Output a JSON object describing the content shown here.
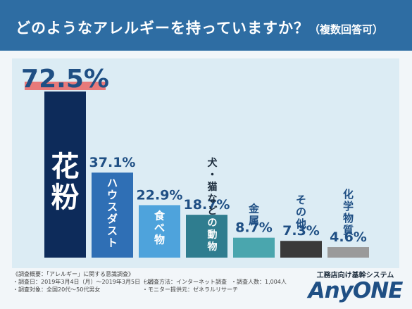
{
  "header": {
    "title": "どのようなアレルギーを持っていますか？",
    "subtitle": "（複数回答可）"
  },
  "chart_data": {
    "type": "bar",
    "categories": [
      "花粉",
      "ハウスダスト",
      "食べ物",
      "犬・猫などの動物",
      "金属",
      "その他",
      "化学物質"
    ],
    "series": [
      {
        "values": [
          72.5,
          37.1,
          22.9,
          18.7,
          8.7,
          7.3,
          4.6
        ]
      }
    ],
    "value_labels": [
      "72.5%",
      "37.1%",
      "22.9%",
      "18.7%",
      "8.7%",
      "7.3%",
      "4.6%"
    ],
    "ylim": [
      0,
      72.5
    ],
    "grid": false,
    "bar_colors": [
      "#0d2b5a",
      "#2f6fb5",
      "#4ea3dc",
      "#2f7d8f",
      "#4aa6ae",
      "#3a3a3a",
      "#9a9a9a"
    ],
    "label_color": "#1f4f84",
    "highlight_color": "#e87a7a"
  },
  "footer": {
    "survey_title": "《調査概要：「アレルギー」に関する意識調査》",
    "survey_date": "・調査日：2019年3月4日（月）～2019年3月5日（火）",
    "survey_method": "・調査方法：インターネット調査",
    "survey_count": "・調査人数：1,004人",
    "survey_target": "・調査対象：全国20代～50代男女",
    "survey_provider": "・モニター提供元：ゼネラルリサーチ"
  },
  "brand": {
    "tagline": "工務店向け基幹システム",
    "logo": "AnyONE"
  }
}
